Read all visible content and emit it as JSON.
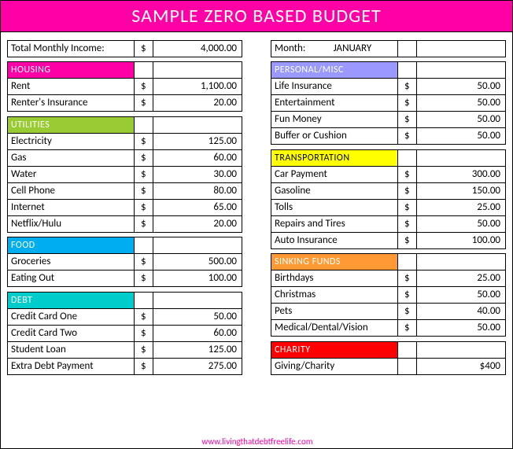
{
  "title": "SAMPLE ZERO BASED BUDGET",
  "footer_url": "www.livingthatdebtfreelife.com",
  "colors": {
    "title_bg": "#ff00a6",
    "housing": "#ff00a6",
    "utilities": "#99cc33",
    "food": "#00aeef",
    "debt": "#00cccc",
    "personal": "#9999ff",
    "transportation": "#ffff00",
    "sinking": "#ff9933",
    "charity": "#ff0000",
    "transportation_text": "#000000",
    "default_header_text": "#ffffff"
  },
  "income": {
    "label": "Total Monthly Income:",
    "currency": "$",
    "amount": "4,000.00"
  },
  "month": {
    "label": "Month:",
    "value": "JANUARY"
  },
  "left_sections": [
    {
      "key": "housing",
      "title": "HOUSING",
      "rows": [
        {
          "label": "Rent",
          "amount": "1,100.00"
        },
        {
          "label": "Renter's Insurance",
          "amount": "20.00"
        }
      ]
    },
    {
      "key": "utilities",
      "title": "UTILITIES",
      "rows": [
        {
          "label": "Electricity",
          "amount": "125.00"
        },
        {
          "label": "Gas",
          "amount": "60.00"
        },
        {
          "label": "Water",
          "amount": "30.00"
        },
        {
          "label": "Cell Phone",
          "amount": "80.00"
        },
        {
          "label": "Internet",
          "amount": "65.00"
        },
        {
          "label": "Netflix/Hulu",
          "amount": "20.00"
        }
      ]
    },
    {
      "key": "food",
      "title": "FOOD",
      "rows": [
        {
          "label": "Groceries",
          "amount": "500.00"
        },
        {
          "label": "Eating Out",
          "amount": "100.00"
        }
      ]
    },
    {
      "key": "debt",
      "title": "DEBT",
      "rows": [
        {
          "label": "Credit Card One",
          "amount": "50.00"
        },
        {
          "label": "Credit Card Two",
          "amount": "60.00"
        },
        {
          "label": "Student Loan",
          "amount": "125.00"
        },
        {
          "label": "Extra Debt Payment",
          "amount": "275.00"
        }
      ]
    }
  ],
  "right_sections": [
    {
      "key": "personal",
      "title": "PERSONAL/MISC",
      "rows": [
        {
          "label": "Life Insurance",
          "amount": "50.00"
        },
        {
          "label": "Entertainment",
          "amount": "50.00"
        },
        {
          "label": "Fun Money",
          "amount": "50.00"
        },
        {
          "label": "Buffer or Cushion",
          "amount": "50.00"
        }
      ]
    },
    {
      "key": "transportation",
      "title": "TRANSPORTATION",
      "rows": [
        {
          "label": "Car Payment",
          "amount": "300.00"
        },
        {
          "label": "Gasoline",
          "amount": "150.00"
        },
        {
          "label": "Tolls",
          "amount": "25.00"
        },
        {
          "label": "Repairs and Tires",
          "amount": "50.00"
        },
        {
          "label": "Auto Insurance",
          "amount": "100.00"
        }
      ]
    },
    {
      "key": "sinking",
      "title": "SINKING FUNDS",
      "rows": [
        {
          "label": "Birthdays",
          "amount": "25.00"
        },
        {
          "label": "Christmas",
          "amount": "50.00"
        },
        {
          "label": "Pets",
          "amount": "40.00"
        },
        {
          "label": "Medical/Dental/Vision",
          "amount": "50.00"
        }
      ]
    },
    {
      "key": "charity",
      "title": "CHARITY",
      "rows": [
        {
          "label": "Giving/Charity",
          "amount": "$400"
        }
      ]
    }
  ]
}
